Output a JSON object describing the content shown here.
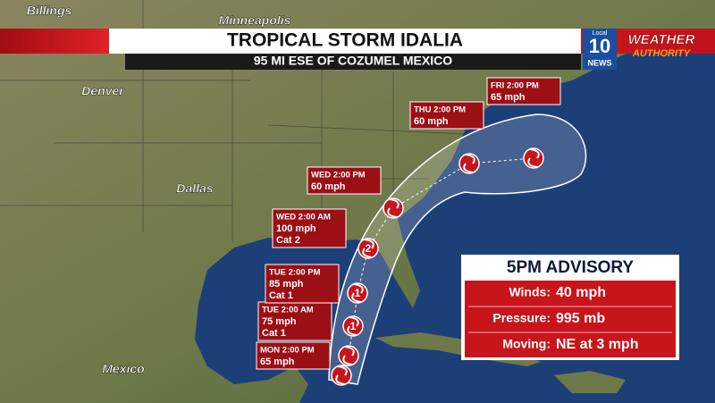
{
  "header": {
    "title": "TROPICAL STORM IDALIA",
    "subtitle": "95 MI ESE OF COZUMEL MEXICO"
  },
  "logo": {
    "station_top": "Local",
    "station_number": "10",
    "station_bottom": "NEWS",
    "brand": "WEATHER",
    "brand_sub": "AUTHORITY"
  },
  "cities": [
    "Billings",
    "Minneapolis",
    "Denver",
    "Dallas",
    "Mexico"
  ],
  "forecast_points": [
    {
      "lines": [
        "MON 2:00 PM",
        "65 mph"
      ],
      "icon": null
    },
    {
      "lines": [
        "TUE 2:00 AM",
        "75 mph",
        "Cat 1"
      ],
      "icon": "1"
    },
    {
      "lines": [
        "TUE 2:00 PM",
        "85 mph",
        "Cat 1"
      ],
      "icon": "1"
    },
    {
      "lines": [
        "WED 2:00 AM",
        "100 mph",
        "Cat 2"
      ],
      "icon": "2"
    },
    {
      "lines": [
        "WED 2:00 PM",
        "60 mph"
      ],
      "icon": null
    },
    {
      "lines": [
        "THU 2:00 PM",
        "60 mph"
      ],
      "icon": null
    },
    {
      "lines": [
        "FRI 2:00 PM",
        "65 mph"
      ],
      "icon": null
    }
  ],
  "advisory": {
    "title": "5PM ADVISORY",
    "rows": [
      {
        "label": "Winds:",
        "value": "40 mph"
      },
      {
        "label": "Pressure:",
        "value": "995 mb"
      },
      {
        "label": "Moving:",
        "value": "NE at 3 mph"
      }
    ]
  }
}
